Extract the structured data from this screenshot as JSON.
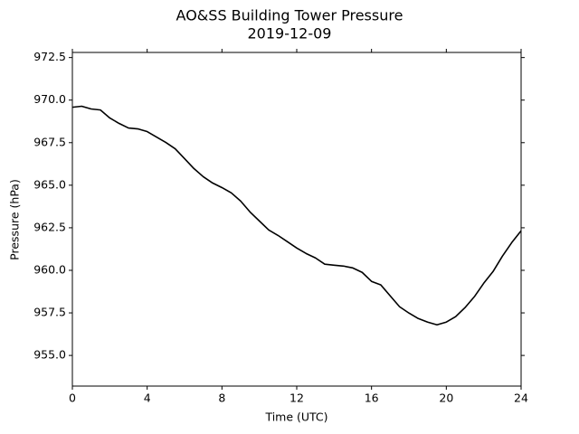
{
  "chart_data": {
    "type": "line",
    "title": "AO&SS Building Tower Pressure",
    "subtitle": "2019-12-09",
    "x_label": "Time (UTC)",
    "y_label": "Pressure (hPa)",
    "x": [
      0,
      0.5,
      1,
      1.5,
      2,
      2.5,
      3,
      3.5,
      4,
      4.5,
      5,
      5.5,
      6,
      6.5,
      7,
      7.5,
      8,
      8.5,
      9,
      9.5,
      10,
      10.5,
      11,
      11.5,
      12,
      12.5,
      13,
      13.5,
      14,
      14.5,
      15,
      15.5,
      16,
      16.5,
      17,
      17.5,
      18,
      18.5,
      19,
      19.5,
      20,
      20.5,
      21,
      21.5,
      22,
      22.5,
      23,
      23.5,
      24
    ],
    "series": [
      {
        "name": "Pressure",
        "color": "#000000",
        "values": [
          969.58,
          969.64,
          969.48,
          969.42,
          968.95,
          968.63,
          968.36,
          968.31,
          968.15,
          967.83,
          967.51,
          967.14,
          966.56,
          965.98,
          965.5,
          965.13,
          964.86,
          964.55,
          964.07,
          963.43,
          962.9,
          962.37,
          962.05,
          961.68,
          961.31,
          960.99,
          960.73,
          960.36,
          960.3,
          960.25,
          960.14,
          959.88,
          959.35,
          959.14,
          958.5,
          957.86,
          957.49,
          957.17,
          956.96,
          956.8,
          956.96,
          957.28,
          957.81,
          958.45,
          959.24,
          959.93,
          960.83,
          961.63,
          962.32
        ]
      }
    ],
    "xlim": [
      0,
      24
    ],
    "xticks": [
      0,
      4,
      8,
      12,
      16,
      20,
      24
    ],
    "ylim": [
      953.2,
      972.8
    ],
    "yticks": [
      {
        "value": 955,
        "label": "955.0"
      },
      957.5,
      {
        "value": 960,
        "label": "960.0"
      },
      962.5,
      {
        "value": 965,
        "label": "965.0"
      },
      967.5,
      {
        "value": 970,
        "label": "970.0"
      },
      972.5
    ],
    "grid": false
  }
}
